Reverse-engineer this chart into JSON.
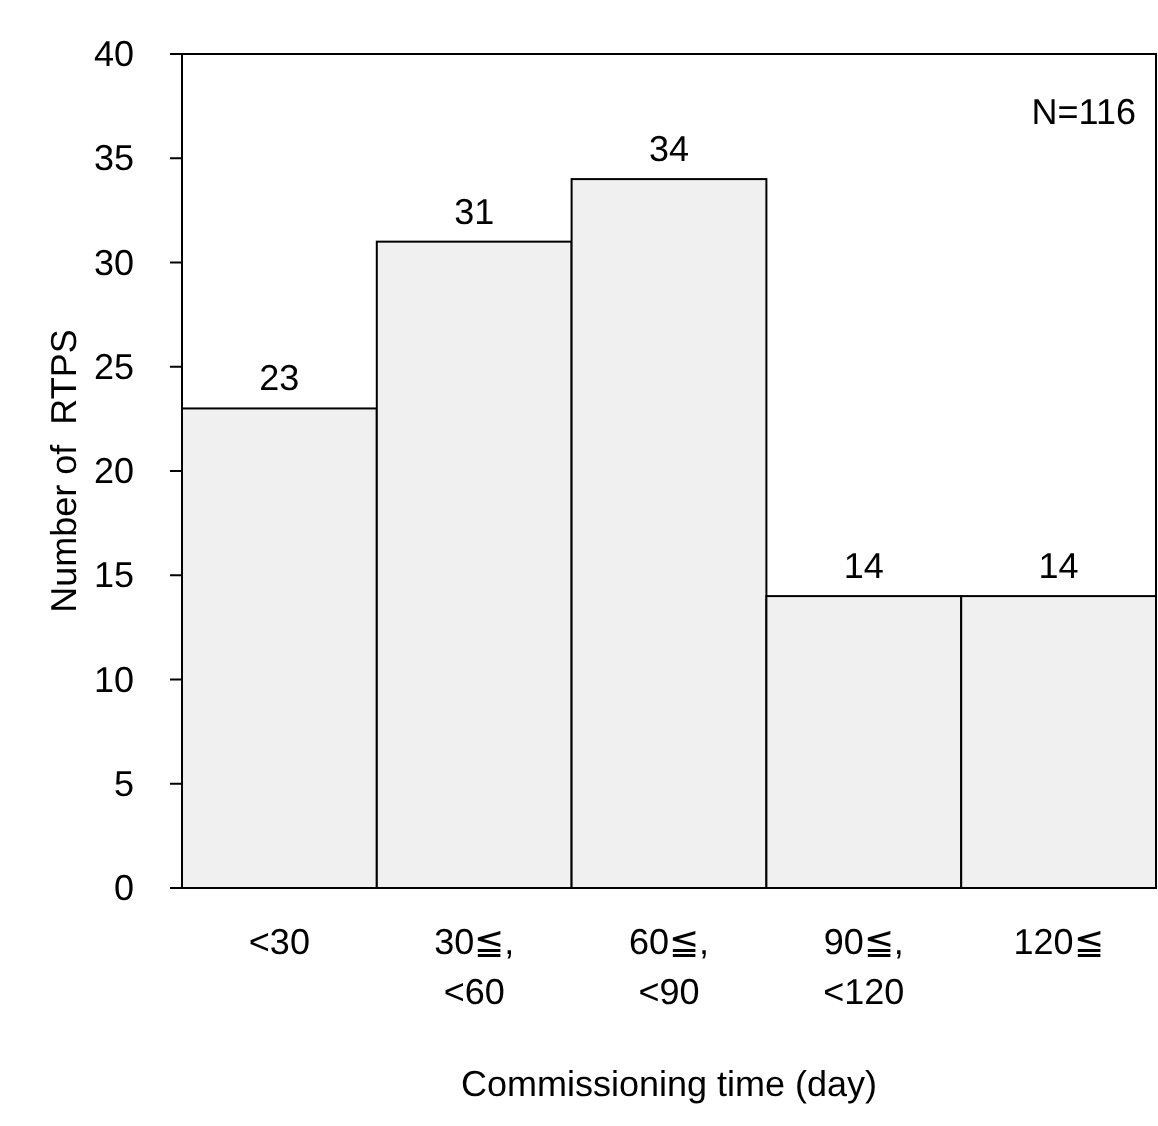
{
  "chart_data": {
    "type": "bar",
    "xlabel": "Commissioning time (day)",
    "ylabel": "Number of  RTPS",
    "categories": [
      "<30",
      "30≦, <60",
      "60≦, <90",
      "90≦, <120",
      "120≦"
    ],
    "values": [
      23,
      31,
      34,
      14,
      14
    ],
    "color": "#f0f0f0",
    "data_labels": true,
    "ylim": [
      0,
      40
    ],
    "yticks": [
      0,
      5,
      10,
      15,
      20,
      25,
      30,
      35,
      40
    ],
    "annotations": [
      "N=116"
    ]
  }
}
